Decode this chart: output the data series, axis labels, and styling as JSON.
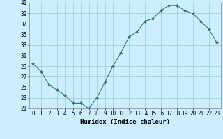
{
  "x": [
    0,
    1,
    2,
    3,
    4,
    5,
    6,
    7,
    8,
    9,
    10,
    11,
    12,
    13,
    14,
    15,
    16,
    17,
    18,
    19,
    20,
    21,
    22,
    23
  ],
  "y": [
    29.5,
    28,
    25.5,
    24.5,
    23.5,
    22,
    22,
    21,
    23,
    26,
    29,
    31.5,
    34.5,
    35.5,
    37.5,
    38,
    39.5,
    40.5,
    40.5,
    39.5,
    39,
    37.5,
    36,
    33.5
  ],
  "xlabel": "Humidex (Indice chaleur)",
  "xlim": [
    -0.5,
    23.5
  ],
  "ylim": [
    21,
    41
  ],
  "yticks": [
    21,
    23,
    25,
    27,
    29,
    31,
    33,
    35,
    37,
    39,
    41
  ],
  "xticks": [
    0,
    1,
    2,
    3,
    4,
    5,
    6,
    7,
    8,
    9,
    10,
    11,
    12,
    13,
    14,
    15,
    16,
    17,
    18,
    19,
    20,
    21,
    22,
    23
  ],
  "line_color": "#2e7d6e",
  "marker_color": "#2e7d6e",
  "bg_color": "#cceeff",
  "grid_color": "#99cccc",
  "label_fontsize": 6.5,
  "tick_fontsize": 5.5
}
